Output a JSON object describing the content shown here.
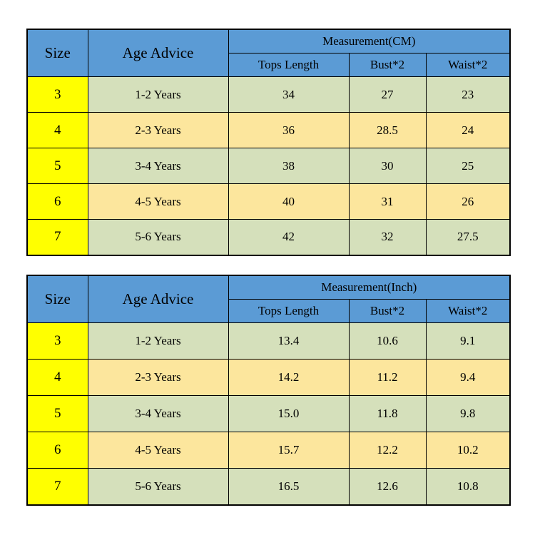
{
  "colors": {
    "page_bg": "#ffffff",
    "header_blue": "#5B9BD5",
    "size_yellow": "#FFFF00",
    "row_green": "#D5E0BB",
    "row_tan": "#FCE69D",
    "border": "#000000",
    "text": "#000000"
  },
  "tables": [
    {
      "id": "cm",
      "headers": {
        "size": "Size",
        "age": "Age Advice",
        "measurement": "Measurement(CM)",
        "sub": [
          "Tops Length",
          "Bust*2",
          "Waist*2"
        ]
      },
      "rows": [
        {
          "size": "3",
          "age": "1-2 Years",
          "values": [
            "34",
            "27",
            "23"
          ]
        },
        {
          "size": "4",
          "age": "2-3 Years",
          "values": [
            "36",
            "28.5",
            "24"
          ]
        },
        {
          "size": "5",
          "age": "3-4 Years",
          "values": [
            "38",
            "30",
            "25"
          ]
        },
        {
          "size": "6",
          "age": "4-5 Years",
          "values": [
            "40",
            "31",
            "26"
          ]
        },
        {
          "size": "7",
          "age": "5-6 Years",
          "values": [
            "42",
            "32",
            "27.5"
          ]
        }
      ]
    },
    {
      "id": "inch",
      "headers": {
        "size": "Size",
        "age": "Age Advice",
        "measurement": "Measurement(Inch)",
        "sub": [
          "Tops Length",
          "Bust*2",
          "Waist*2"
        ]
      },
      "rows": [
        {
          "size": "3",
          "age": "1-2 Years",
          "values": [
            "13.4",
            "10.6",
            "9.1"
          ]
        },
        {
          "size": "4",
          "age": "2-3 Years",
          "values": [
            "14.2",
            "11.2",
            "9.4"
          ]
        },
        {
          "size": "5",
          "age": "3-4 Years",
          "values": [
            "15.0",
            "11.8",
            "9.8"
          ]
        },
        {
          "size": "6",
          "age": "4-5 Years",
          "values": [
            "15.7",
            "12.2",
            "10.2"
          ]
        },
        {
          "size": "7",
          "age": "5-6 Years",
          "values": [
            "16.5",
            "12.6",
            "10.8"
          ]
        }
      ]
    }
  ]
}
